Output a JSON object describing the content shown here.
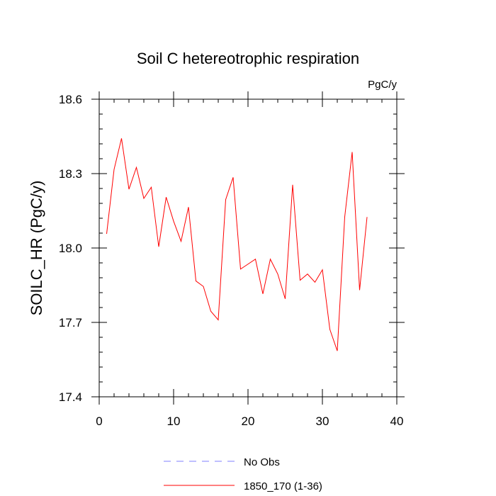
{
  "chart_data": {
    "type": "line",
    "title": "Soil C hetereotrophic respiration",
    "units_label": "PgC/y",
    "xlabel": "",
    "ylabel": "SOILC_HR  (PgC/y)",
    "xlim": [
      0,
      40
    ],
    "ylim": [
      17.4,
      18.6
    ],
    "x_major_ticks": [
      0,
      10,
      20,
      30,
      40
    ],
    "x_tick_labels": [
      "0",
      "10",
      "20",
      "30",
      "40"
    ],
    "y_major_ticks": [
      17.4,
      17.7,
      18.0,
      18.3,
      18.6
    ],
    "y_tick_labels": [
      "17.4",
      "17.7",
      "18.0",
      "18.3",
      "18.6"
    ],
    "grid": false,
    "legend_position": "bottom-center",
    "series": [
      {
        "name": "No Obs",
        "color": "#7f7fff",
        "style": "dashed",
        "x": [],
        "values": []
      },
      {
        "name": "1850_170 (1-36)",
        "color": "#ff0000",
        "style": "solid",
        "x": [
          1,
          2,
          3,
          4,
          5,
          6,
          7,
          8,
          9,
          10,
          11,
          12,
          13,
          14,
          15,
          16,
          17,
          18,
          19,
          20,
          21,
          22,
          23,
          24,
          25,
          26,
          27,
          28,
          29,
          30,
          31,
          32,
          33,
          34,
          35,
          36
        ],
        "values": [
          18.057,
          18.317,
          18.442,
          18.237,
          18.325,
          18.2,
          18.245,
          18.005,
          18.205,
          18.108,
          18.027,
          18.165,
          17.867,
          17.845,
          17.745,
          17.71,
          18.195,
          18.285,
          17.915,
          17.935,
          17.955,
          17.815,
          17.955,
          17.895,
          17.795,
          18.255,
          17.87,
          17.895,
          17.862,
          17.912,
          17.672,
          17.585,
          18.125,
          18.387,
          17.83,
          18.125
        ]
      }
    ]
  }
}
